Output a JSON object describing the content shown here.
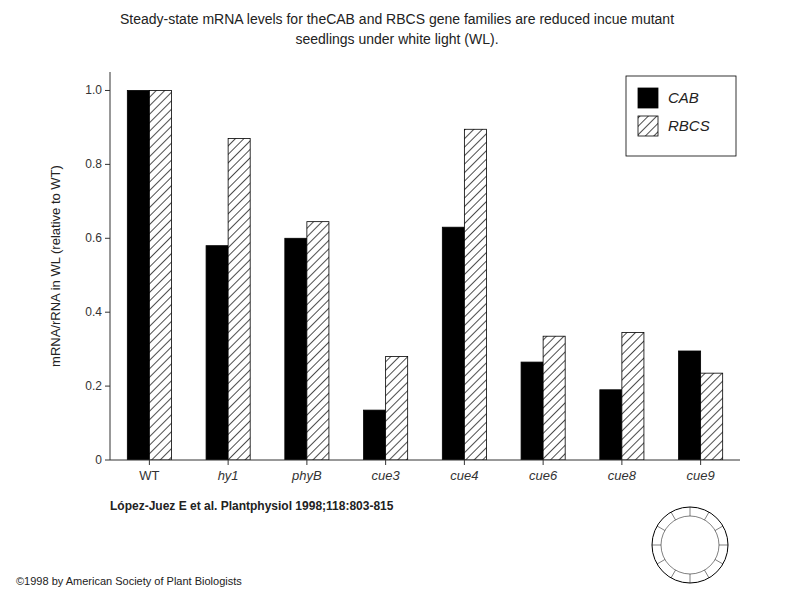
{
  "chart_data": {
    "type": "bar",
    "title": "Steady-state mRNA levels for theCAB and RBCS gene families are reduced incue mutant",
    "subtitle": "seedlings under white light (WL).",
    "categories": [
      "WT",
      "hy1",
      "phyB",
      "cue3",
      "cue4",
      "cue6",
      "cue8",
      "cue9"
    ],
    "series": [
      {
        "name": "CAB",
        "color": "#000000",
        "values": [
          1.0,
          0.58,
          0.6,
          0.135,
          0.63,
          0.265,
          0.19,
          0.295
        ]
      },
      {
        "name": "RBCS",
        "color": "#ffffff",
        "values": [
          1.0,
          0.87,
          0.645,
          0.28,
          0.895,
          0.335,
          0.345,
          0.235
        ]
      }
    ],
    "y_label": "mRNA/rRNA in WL (relative to WT)",
    "ylim": [
      0,
      1.05
    ],
    "yticks": [
      0,
      0.2,
      0.4,
      0.6,
      0.8,
      {
        "value": 1.0,
        "label": "1.0"
      }
    ],
    "grid": false,
    "legend": "upper right",
    "annotations": [
      "López-Juez E et al. Plantphysiol 1998;118:803-815",
      "©1998 by American Society of Plant Biologists"
    ]
  }
}
